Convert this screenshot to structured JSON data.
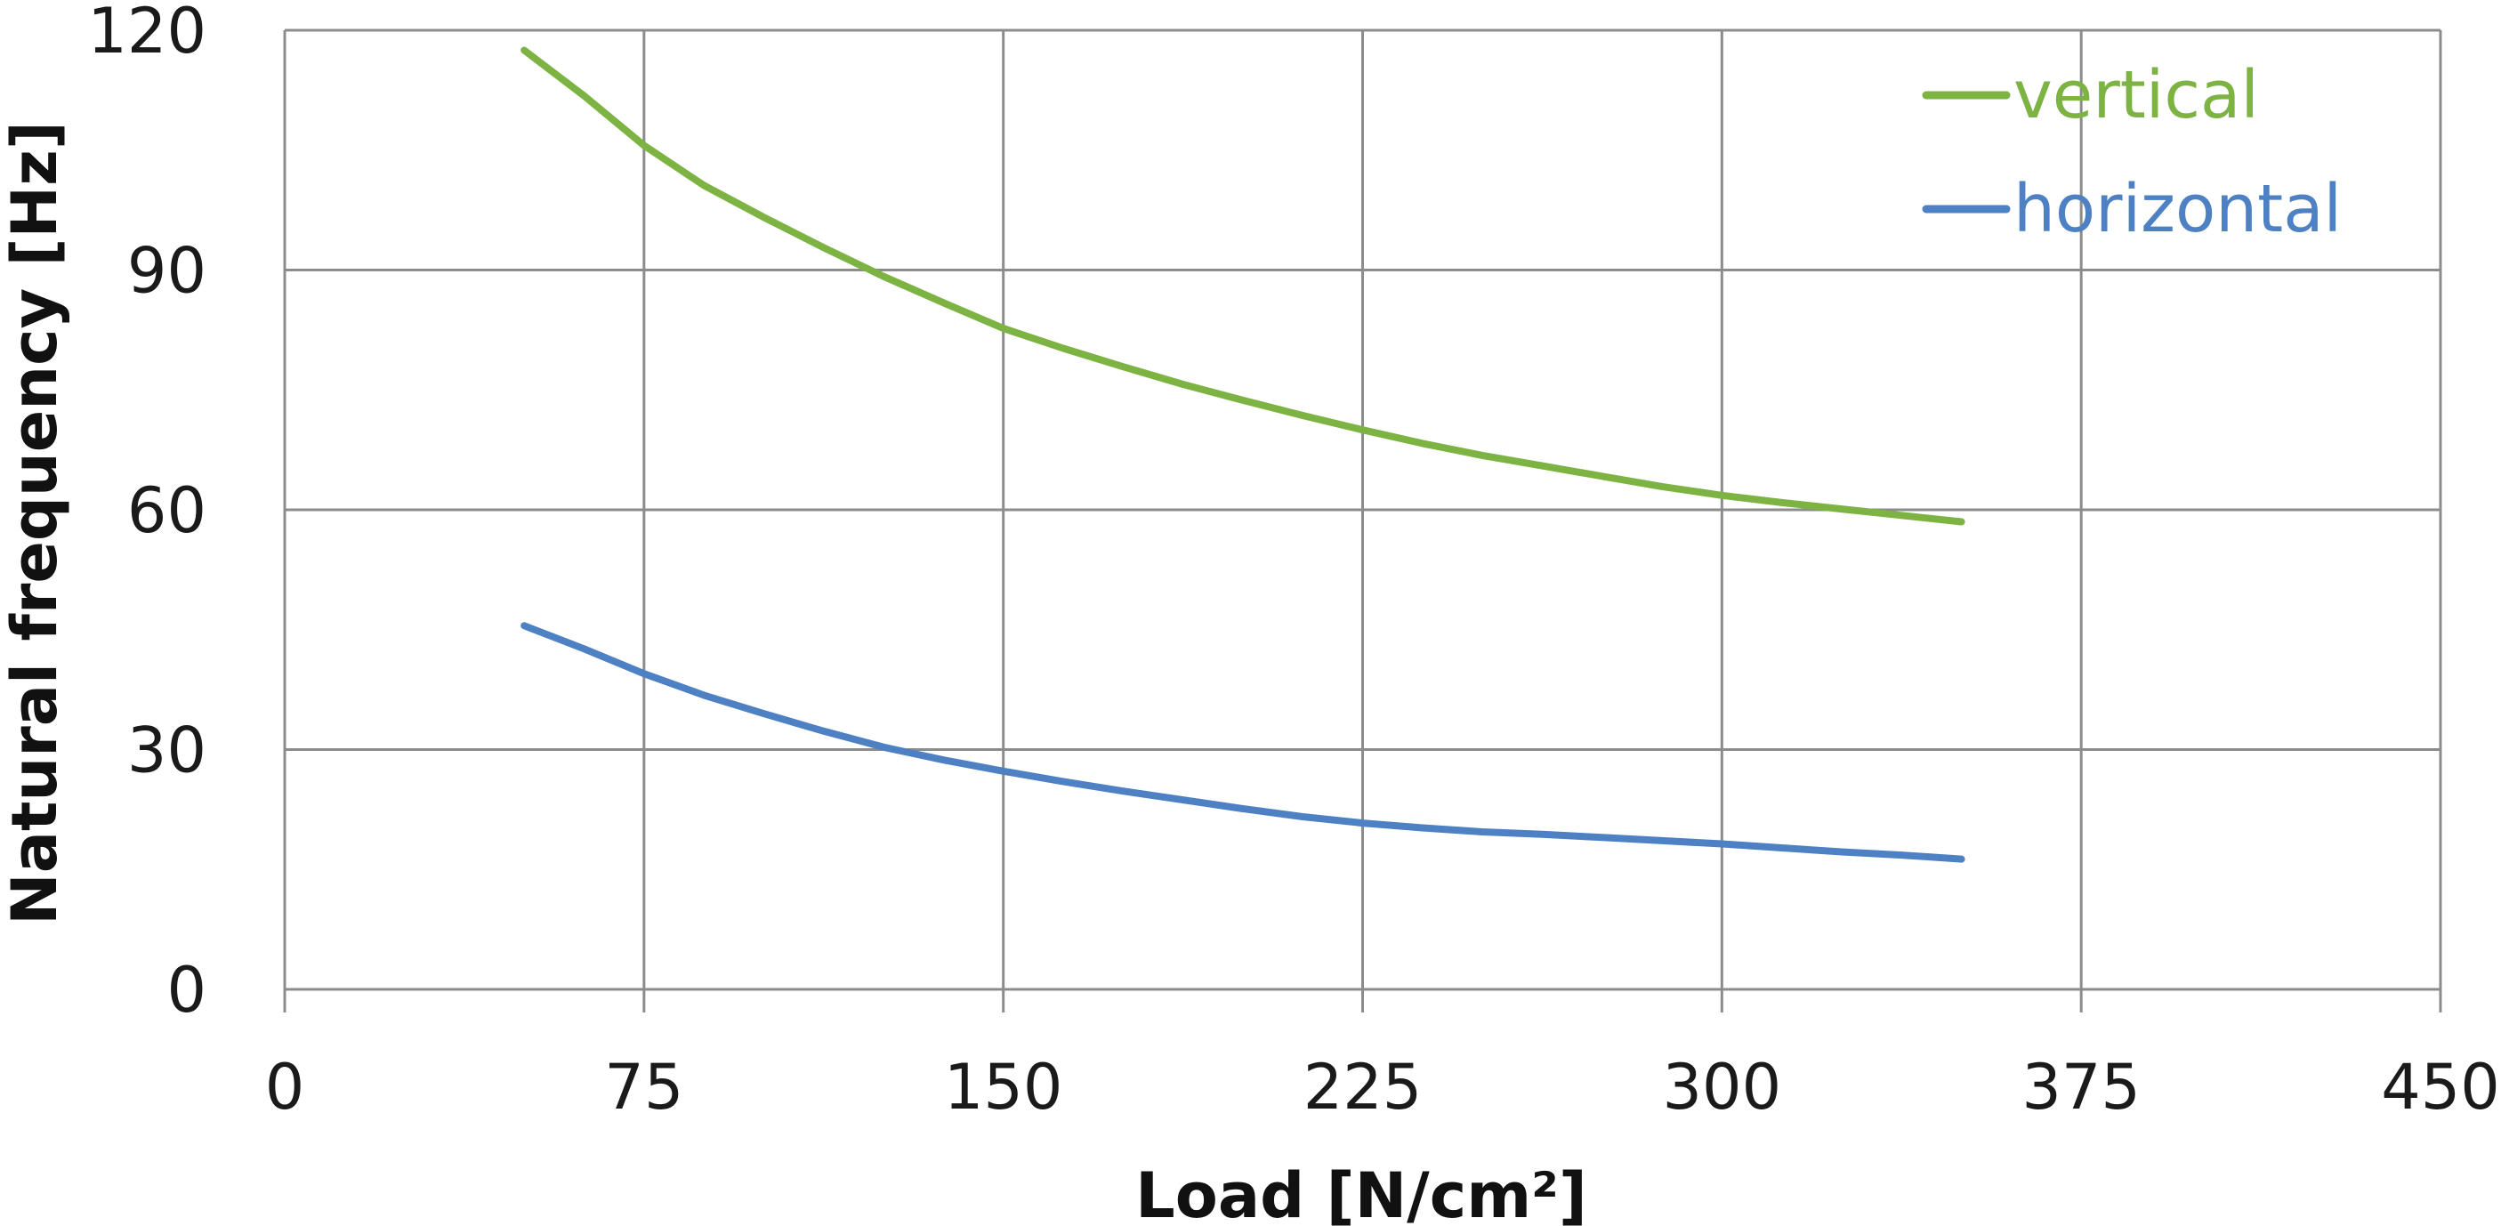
{
  "chart_data": {
    "type": "line",
    "title": "",
    "xlabel": "Load [N/cm²]",
    "ylabel": "Natural frequency [Hz]",
    "xlim": [
      0,
      450
    ],
    "ylim": [
      0,
      120
    ],
    "x_ticks": [
      "0",
      "75",
      "150",
      "225",
      "300",
      "375",
      "450"
    ],
    "y_ticks": [
      "0",
      "30",
      "60",
      "90",
      "120"
    ],
    "grid": true,
    "legend_position": "top-right",
    "series": [
      {
        "name": "vertical",
        "color": "#7cb342",
        "x": [
          50,
          62.5,
          75,
          87.5,
          100,
          112.5,
          125,
          137.5,
          150,
          162.5,
          175,
          187.5,
          200,
          212.5,
          225,
          237.5,
          250,
          262.5,
          275,
          287.5,
          300,
          312.5,
          325,
          337.5,
          350
        ],
        "y": [
          117.5,
          111.8,
          105.6,
          100.6,
          96.6,
          92.8,
          89.2,
          85.9,
          82.7,
          80.2,
          77.9,
          75.7,
          73.7,
          71.8,
          70.0,
          68.3,
          66.8,
          65.5,
          64.2,
          62.9,
          61.8,
          60.9,
          60.1,
          59.3,
          58.5
        ]
      },
      {
        "name": "horizontal",
        "color": "#4e81c4",
        "x": [
          50,
          62.5,
          75,
          87.5,
          100,
          112.5,
          125,
          137.5,
          150,
          162.5,
          175,
          187.5,
          200,
          212.5,
          225,
          237.5,
          250,
          262.5,
          275,
          287.5,
          300,
          312.5,
          325,
          337.5,
          350
        ],
        "y": [
          45.5,
          42.6,
          39.5,
          36.8,
          34.5,
          32.3,
          30.3,
          28.7,
          27.3,
          26.0,
          24.8,
          23.7,
          22.6,
          21.6,
          20.8,
          20.2,
          19.7,
          19.4,
          19.0,
          18.6,
          18.2,
          17.7,
          17.2,
          16.8,
          16.3
        ]
      }
    ]
  }
}
